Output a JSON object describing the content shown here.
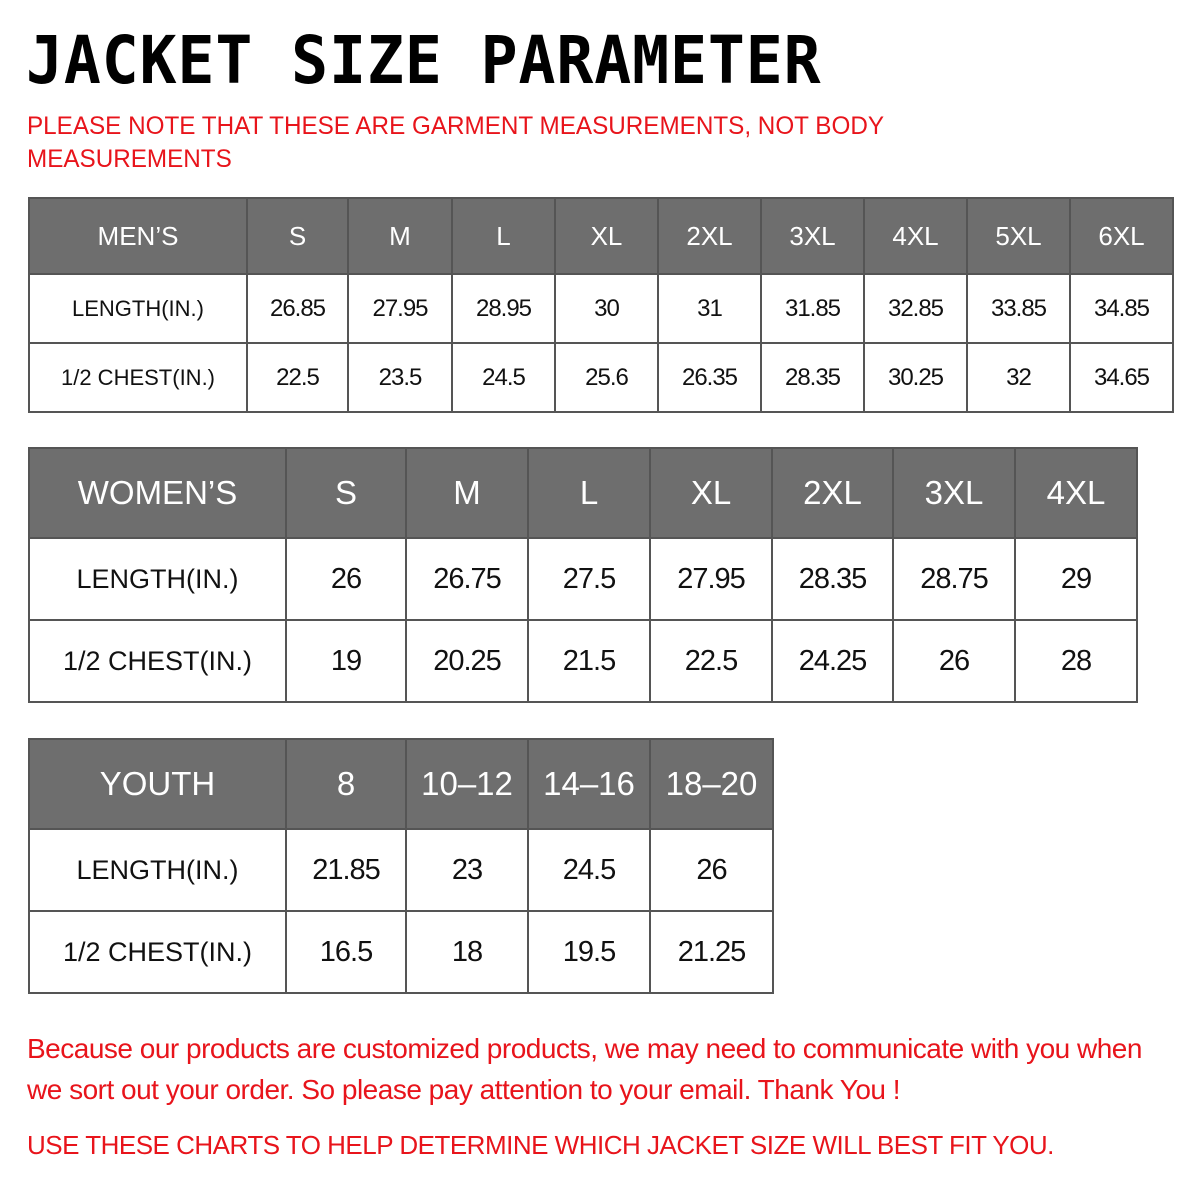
{
  "title": "JACKET SIZE PARAMETER",
  "note": "PLEASE NOTE THAT THESE ARE GARMENT MEASUREMENTS, NOT BODY MEASUREMENTS",
  "colors": {
    "header_bg": "#6e6e6e",
    "note_red": "#e8141b"
  },
  "tables": {
    "men": {
      "header": [
        "MEN’S",
        "S",
        "M",
        "L",
        "XL",
        "2XL",
        "3XL",
        "4XL",
        "5XL",
        "6XL"
      ],
      "rows": [
        [
          "LENGTH(IN.)",
          "26.85",
          "27.95",
          "28.95",
          "30",
          "31",
          "31.85",
          "32.85",
          "33.85",
          "34.85"
        ],
        [
          "1/2 CHEST(IN.)",
          "22.5",
          "23.5",
          "24.5",
          "25.6",
          "26.35",
          "28.35",
          "30.25",
          "32",
          "34.65"
        ]
      ]
    },
    "women": {
      "header": [
        "WOMEN’S",
        "S",
        "M",
        "L",
        "XL",
        "2XL",
        "3XL",
        "4XL"
      ],
      "rows": [
        [
          "LENGTH(IN.)",
          "26",
          "26.75",
          "27.5",
          "27.95",
          "28.35",
          "28.75",
          "29"
        ],
        [
          "1/2 CHEST(IN.)",
          "19",
          "20.25",
          "21.5",
          "22.5",
          "24.25",
          "26",
          "28"
        ]
      ]
    },
    "youth": {
      "header": [
        "YOUTH",
        "8",
        "10–12",
        "14–16",
        "18–20"
      ],
      "rows": [
        [
          "LENGTH(IN.)",
          "21.85",
          "23",
          "24.5",
          "26"
        ],
        [
          "1/2 CHEST(IN.)",
          "16.5",
          "18",
          "19.5",
          "21.25"
        ]
      ]
    }
  },
  "footer": {
    "message": "Because our products are customized products, we may need to communicate with you when we sort out your order. So please pay attention to your email. Thank You !",
    "advice": "USE THESE CHARTS TO HELP DETERMINE WHICH JACKET SIZE WILL BEST FIT YOU."
  }
}
